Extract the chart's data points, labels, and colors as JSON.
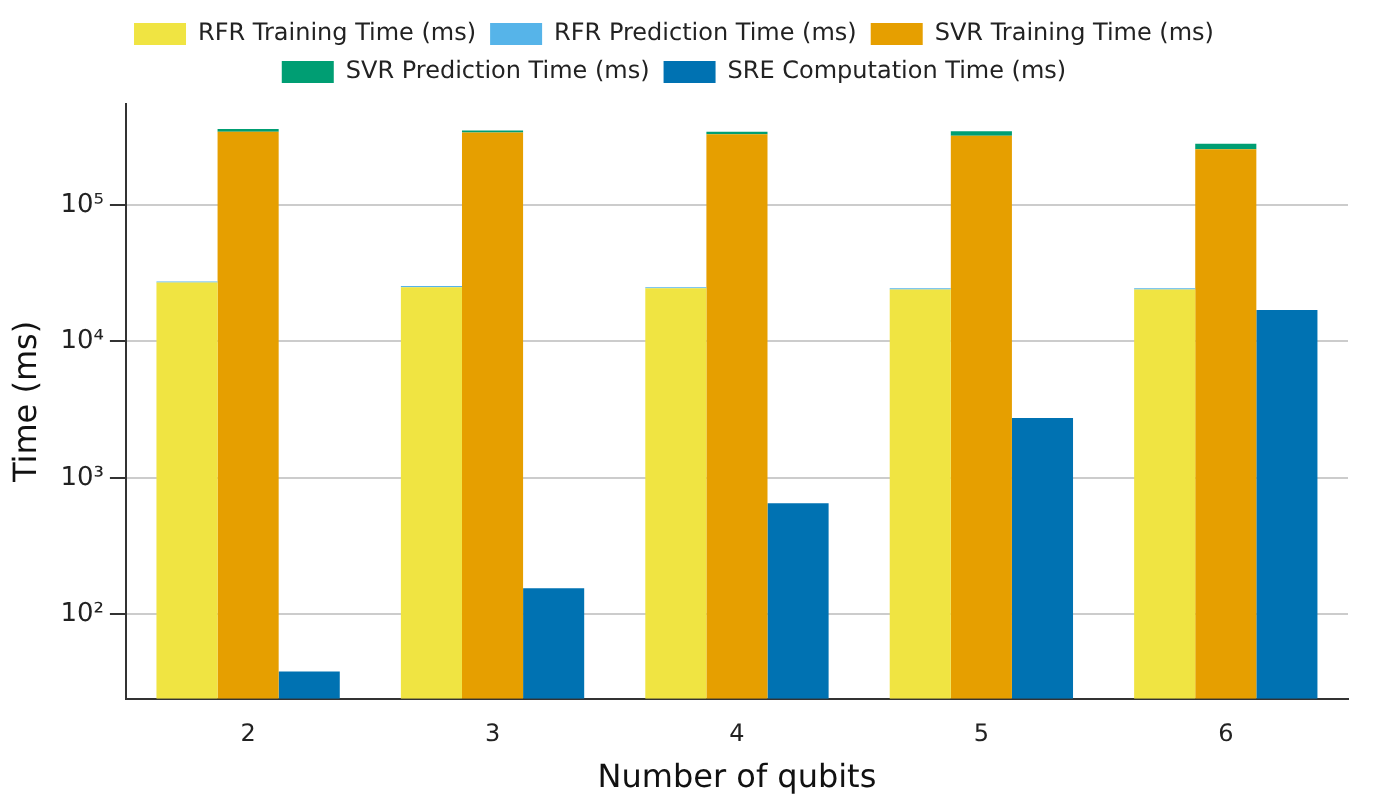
{
  "chart_data": {
    "type": "bar",
    "xlabel": "Number of qubits",
    "ylabel": "Time (ms)",
    "categories": [
      "2",
      "3",
      "4",
      "5",
      "6"
    ],
    "series": [
      {
        "name": "RFR Training Time (ms)",
        "color": "#f0e442",
        "values": [
          27000,
          25000,
          24500,
          24000,
          24000
        ]
      },
      {
        "name": "RFR Prediction Time (ms)",
        "color": "#56b4e9",
        "values": [
          500,
          500,
          500,
          500,
          500
        ],
        "base": [
          27000,
          25000,
          24500,
          24000,
          24000
        ]
      },
      {
        "name": "SVR Training Time (ms)",
        "color": "#e69f00",
        "values": [
          345000,
          340000,
          330000,
          322000,
          256000
        ]
      },
      {
        "name": "SVR Prediction Time (ms)",
        "color": "#009e73",
        "values": [
          15000,
          12000,
          15000,
          25000,
          25000
        ],
        "base": [
          345000,
          340000,
          330000,
          322000,
          256000
        ]
      },
      {
        "name": "SRE Computation Time (ms)",
        "color": "#0072b2",
        "values": [
          38,
          155,
          650,
          2750,
          17000
        ]
      }
    ],
    "log": "y",
    "ylim": [
      24,
      550000
    ],
    "yticks": [
      {
        "value": 100,
        "label": "10²"
      },
      {
        "value": 1000,
        "label": "10³"
      },
      {
        "value": 10000,
        "label": "10⁴"
      },
      {
        "value": 100000,
        "label": "10⁵"
      }
    ],
    "grid": "y",
    "legend": "top"
  }
}
